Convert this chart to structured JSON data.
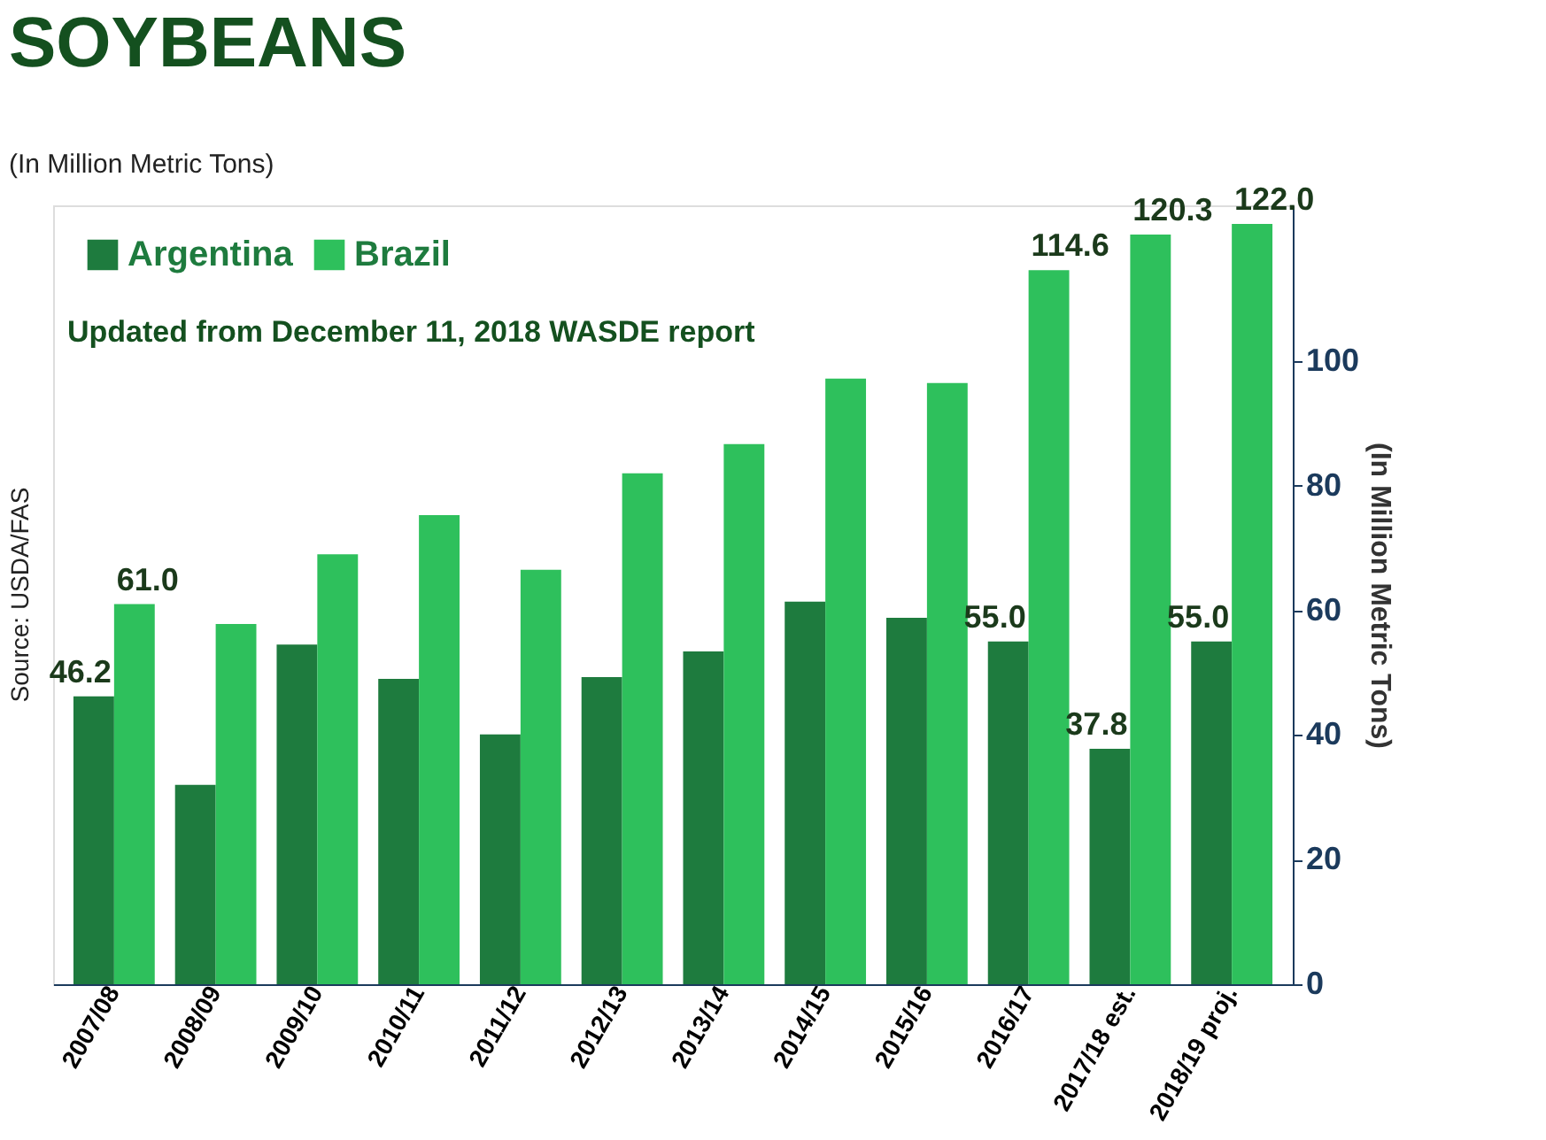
{
  "chart_data": {
    "type": "bar",
    "title": "SOYBEANS",
    "subtitle": "(In Million Metric Tons)",
    "ylabel": "(In Million Metric Tons)",
    "annotations": [
      "Updated from December 11, 2018 WASDE report",
      "Source: USDA/FAS"
    ],
    "categories": [
      "2007/08",
      "2008/09",
      "2009/10",
      "2010/11",
      "2011/12",
      "2012/13",
      "2013/14",
      "2014/15",
      "2015/16",
      "2016/17",
      "2017/18 est.",
      "2018/19 proj."
    ],
    "series": [
      {
        "name": "Argentina",
        "color": "#1e7b3e",
        "values": [
          46.2,
          32.0,
          54.5,
          49.0,
          40.1,
          49.3,
          53.4,
          61.4,
          58.8,
          55.0,
          37.8,
          55.0
        ],
        "value_labels": [
          "46.2",
          null,
          null,
          null,
          null,
          null,
          null,
          null,
          null,
          "55.0",
          "37.8",
          "55.0"
        ]
      },
      {
        "name": "Brazil",
        "color": "#2ec05c",
        "values": [
          61.0,
          57.8,
          69.0,
          75.3,
          66.5,
          82.0,
          86.7,
          97.2,
          96.5,
          114.6,
          120.3,
          122.0
        ],
        "value_labels": [
          "61.0",
          null,
          null,
          null,
          null,
          null,
          null,
          null,
          null,
          "114.6",
          "120.3",
          "122.0"
        ]
      }
    ],
    "ylim": [
      0,
      125
    ],
    "yticks": [
      0,
      20,
      40,
      60,
      80,
      100
    ],
    "grid": false,
    "legend": "top left"
  }
}
